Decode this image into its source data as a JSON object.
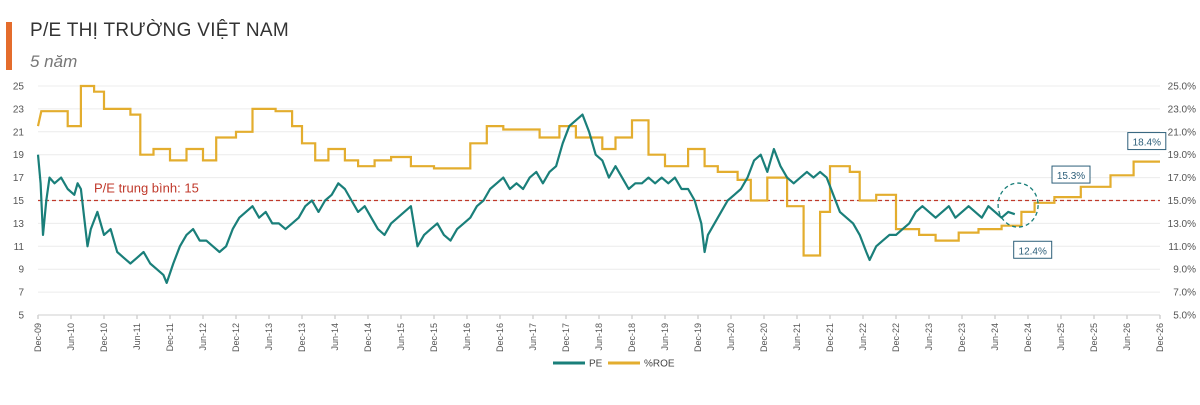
{
  "header": {
    "title": "P/E THỊ TRƯỜNG VIỆT NAM",
    "subtitle": "5 năm"
  },
  "colors": {
    "accent": "#e46c2c",
    "pe": "#1a7f7a",
    "roe": "#e3ad2e",
    "avg": "#c0392b"
  },
  "chart_data": {
    "type": "line",
    "title": "P/E THỊ TRƯỜNG VIỆT NAM",
    "subtitle": "5 năm",
    "ylim_left": [
      5,
      25
    ],
    "ylim_right": [
      5.0,
      25.0
    ],
    "left_ticks": [
      "5",
      "7",
      "9",
      "11",
      "13",
      "15",
      "17",
      "19",
      "21",
      "23",
      "25"
    ],
    "right_ticks": [
      "5.0%",
      "7.0%",
      "9.0%",
      "11.0%",
      "13.0%",
      "15.0%",
      "17.0%",
      "19.0%",
      "21.0%",
      "23.0%",
      "25.0%"
    ],
    "x_ticks": [
      "Dec-09",
      "Jun-10",
      "Dec-10",
      "Jun-11",
      "Dec-11",
      "Jun-12",
      "Dec-12",
      "Jun-13",
      "Dec-13",
      "Jun-14",
      "Dec-14",
      "Jun-15",
      "Dec-15",
      "Jun-16",
      "Dec-16",
      "Jun-17",
      "Dec-17",
      "Jun-18",
      "Dec-18",
      "Jun-19",
      "Dec-19",
      "Jun-20",
      "Dec-20",
      "Jun-21",
      "Dec-21",
      "Jun-22",
      "Dec-22",
      "Jun-23",
      "Dec-23",
      "Jun-24",
      "Dec-24",
      "Jun-25",
      "Dec-25",
      "Jun-26",
      "Dec-26"
    ],
    "reference_line": {
      "value": 15,
      "label": "P/E trung bình: 15"
    },
    "annotations": [
      "12.4%",
      "15.3%",
      "18.4%"
    ],
    "legend": {
      "position": "bottom",
      "items": [
        "PE",
        "%ROE"
      ]
    },
    "series": [
      {
        "name": "PE",
        "axis": "left",
        "points": [
          [
            0,
            19
          ],
          [
            0.08,
            16.5
          ],
          [
            0.15,
            12
          ],
          [
            0.25,
            15
          ],
          [
            0.35,
            17
          ],
          [
            0.5,
            16.5
          ],
          [
            0.7,
            17
          ],
          [
            0.9,
            16
          ],
          [
            1.1,
            15.5
          ],
          [
            1.2,
            16.5
          ],
          [
            1.3,
            16
          ],
          [
            1.4,
            13.5
          ],
          [
            1.5,
            11
          ],
          [
            1.6,
            12.5
          ],
          [
            1.8,
            14
          ],
          [
            2,
            12
          ],
          [
            2.2,
            12.5
          ],
          [
            2.4,
            10.5
          ],
          [
            2.6,
            10
          ],
          [
            2.8,
            9.5
          ],
          [
            3,
            10
          ],
          [
            3.2,
            10.5
          ],
          [
            3.4,
            9.5
          ],
          [
            3.6,
            9
          ],
          [
            3.8,
            8.5
          ],
          [
            3.9,
            7.8
          ],
          [
            4.1,
            9.5
          ],
          [
            4.3,
            11
          ],
          [
            4.5,
            12
          ],
          [
            4.7,
            12.5
          ],
          [
            4.9,
            11.5
          ],
          [
            5.1,
            11.5
          ],
          [
            5.3,
            11
          ],
          [
            5.5,
            10.5
          ],
          [
            5.7,
            11
          ],
          [
            5.9,
            12.5
          ],
          [
            6.1,
            13.5
          ],
          [
            6.3,
            14
          ],
          [
            6.5,
            14.5
          ],
          [
            6.7,
            13.5
          ],
          [
            6.9,
            14
          ],
          [
            7.1,
            13
          ],
          [
            7.3,
            13
          ],
          [
            7.5,
            12.5
          ],
          [
            7.7,
            13
          ],
          [
            7.9,
            13.5
          ],
          [
            8.1,
            14.5
          ],
          [
            8.3,
            15
          ],
          [
            8.5,
            14
          ],
          [
            8.7,
            15
          ],
          [
            8.9,
            15.5
          ],
          [
            9.1,
            16.5
          ],
          [
            9.3,
            16
          ],
          [
            9.5,
            15
          ],
          [
            9.7,
            14
          ],
          [
            9.9,
            14.5
          ],
          [
            10.1,
            13.5
          ],
          [
            10.3,
            12.5
          ],
          [
            10.5,
            12
          ],
          [
            10.7,
            13
          ],
          [
            10.9,
            13.5
          ],
          [
            11.1,
            14
          ],
          [
            11.3,
            14.5
          ],
          [
            11.5,
            11
          ],
          [
            11.7,
            12
          ],
          [
            11.9,
            12.5
          ],
          [
            12.1,
            13
          ],
          [
            12.3,
            12
          ],
          [
            12.5,
            11.5
          ],
          [
            12.7,
            12.5
          ],
          [
            12.9,
            13
          ],
          [
            13.1,
            13.5
          ],
          [
            13.3,
            14.5
          ],
          [
            13.5,
            15
          ],
          [
            13.7,
            16
          ],
          [
            13.9,
            16.5
          ],
          [
            14.1,
            17
          ],
          [
            14.3,
            16
          ],
          [
            14.5,
            16.5
          ],
          [
            14.7,
            16
          ],
          [
            14.9,
            17
          ],
          [
            15.1,
            17.5
          ],
          [
            15.3,
            16.5
          ],
          [
            15.5,
            17.5
          ],
          [
            15.7,
            18
          ],
          [
            15.9,
            20
          ],
          [
            16.1,
            21.5
          ],
          [
            16.3,
            22
          ],
          [
            16.5,
            22.5
          ],
          [
            16.7,
            21
          ],
          [
            16.9,
            19
          ],
          [
            17.1,
            18.5
          ],
          [
            17.3,
            17
          ],
          [
            17.5,
            18
          ],
          [
            17.7,
            17
          ],
          [
            17.9,
            16
          ],
          [
            18.1,
            16.5
          ],
          [
            18.3,
            16.5
          ],
          [
            18.5,
            17
          ],
          [
            18.7,
            16.5
          ],
          [
            18.9,
            17
          ],
          [
            19.1,
            16.5
          ],
          [
            19.3,
            17
          ],
          [
            19.5,
            16
          ],
          [
            19.7,
            16
          ],
          [
            19.9,
            15
          ],
          [
            20.1,
            13
          ],
          [
            20.2,
            10.5
          ],
          [
            20.3,
            12
          ],
          [
            20.5,
            13
          ],
          [
            20.7,
            14
          ],
          [
            20.9,
            15
          ],
          [
            21.1,
            15.5
          ],
          [
            21.3,
            16
          ],
          [
            21.5,
            17
          ],
          [
            21.7,
            18.5
          ],
          [
            21.9,
            19
          ],
          [
            22.1,
            17.5
          ],
          [
            22.3,
            19.5
          ],
          [
            22.5,
            18
          ],
          [
            22.7,
            17
          ],
          [
            22.9,
            16.5
          ],
          [
            23.1,
            17
          ],
          [
            23.3,
            17.5
          ],
          [
            23.5,
            17
          ],
          [
            23.7,
            17.5
          ],
          [
            23.9,
            17
          ],
          [
            24.1,
            15.5
          ],
          [
            24.3,
            14
          ],
          [
            24.5,
            13.5
          ],
          [
            24.7,
            13
          ],
          [
            24.9,
            12
          ],
          [
            25.1,
            10.5
          ],
          [
            25.2,
            9.8
          ],
          [
            25.4,
            11
          ],
          [
            25.6,
            11.5
          ],
          [
            25.8,
            12
          ],
          [
            26,
            12
          ],
          [
            26.2,
            12.5
          ],
          [
            26.4,
            13
          ],
          [
            26.6,
            14
          ],
          [
            26.8,
            14.5
          ],
          [
            27,
            14
          ],
          [
            27.2,
            13.5
          ],
          [
            27.4,
            14
          ],
          [
            27.6,
            14.5
          ],
          [
            27.8,
            13.5
          ],
          [
            28,
            14
          ],
          [
            28.2,
            14.5
          ],
          [
            28.4,
            14
          ],
          [
            28.6,
            13.5
          ],
          [
            28.8,
            14.5
          ],
          [
            29,
            14
          ],
          [
            29.2,
            13.5
          ],
          [
            29.4,
            14
          ],
          [
            29.6,
            13.8
          ]
        ]
      },
      {
        "name": "%ROE",
        "axis": "right",
        "points": [
          [
            0,
            21.5
          ],
          [
            0.1,
            22.8
          ],
          [
            0.9,
            22.8
          ],
          [
            0.9,
            21.5
          ],
          [
            1.3,
            21.5
          ],
          [
            1.3,
            25
          ],
          [
            1.7,
            25
          ],
          [
            1.7,
            24.5
          ],
          [
            2,
            24.5
          ],
          [
            2,
            23
          ],
          [
            2.8,
            23
          ],
          [
            2.8,
            22.5
          ],
          [
            3.1,
            22.5
          ],
          [
            3.1,
            19
          ],
          [
            3.5,
            19
          ],
          [
            3.5,
            19.5
          ],
          [
            4,
            19.5
          ],
          [
            4,
            18.5
          ],
          [
            4.3,
            18.5
          ],
          [
            4.3,
            18.5
          ],
          [
            4.5,
            18.5
          ],
          [
            4.5,
            19.5
          ],
          [
            5,
            19.5
          ],
          [
            5,
            18.5
          ],
          [
            5.4,
            18.5
          ],
          [
            5.4,
            20.5
          ],
          [
            6,
            20.5
          ],
          [
            6,
            21
          ],
          [
            6.5,
            21
          ],
          [
            6.5,
            23
          ],
          [
            7.2,
            23
          ],
          [
            7.2,
            22.8
          ],
          [
            7.7,
            22.8
          ],
          [
            7.7,
            21.5
          ],
          [
            8,
            21.5
          ],
          [
            8,
            20
          ],
          [
            8.4,
            20
          ],
          [
            8.4,
            18.5
          ],
          [
            8.8,
            18.5
          ],
          [
            8.8,
            19.5
          ],
          [
            9.3,
            19.5
          ],
          [
            9.3,
            18.5
          ],
          [
            9.7,
            18.5
          ],
          [
            9.7,
            18
          ],
          [
            10.2,
            18
          ],
          [
            10.2,
            18.5
          ],
          [
            10.7,
            18.5
          ],
          [
            10.7,
            18.8
          ],
          [
            11.3,
            18.8
          ],
          [
            11.3,
            18
          ],
          [
            12,
            18
          ],
          [
            12,
            17.8
          ],
          [
            13.1,
            17.8
          ],
          [
            13.1,
            20
          ],
          [
            13.6,
            20
          ],
          [
            13.6,
            21.5
          ],
          [
            14.1,
            21.5
          ],
          [
            14.1,
            21.2
          ],
          [
            15.2,
            21.2
          ],
          [
            15.2,
            20.5
          ],
          [
            15.8,
            20.5
          ],
          [
            15.8,
            21.5
          ],
          [
            16.3,
            21.5
          ],
          [
            16.3,
            20.5
          ],
          [
            17.1,
            20.5
          ],
          [
            17.1,
            19.5
          ],
          [
            17.5,
            19.5
          ],
          [
            17.5,
            20.5
          ],
          [
            18,
            20.5
          ],
          [
            18,
            22
          ],
          [
            18.5,
            22
          ],
          [
            18.5,
            19
          ],
          [
            19,
            19
          ],
          [
            19,
            18
          ],
          [
            19.7,
            18
          ],
          [
            19.7,
            19.5
          ],
          [
            20.2,
            19.5
          ],
          [
            20.2,
            18
          ],
          [
            20.6,
            18
          ],
          [
            20.6,
            17.5
          ],
          [
            21.2,
            17.5
          ],
          [
            21.2,
            16.8
          ],
          [
            21.6,
            16.8
          ],
          [
            21.6,
            15
          ],
          [
            22.1,
            15
          ],
          [
            22.1,
            17
          ],
          [
            22.7,
            17
          ],
          [
            22.7,
            14.5
          ],
          [
            23.2,
            14.5
          ],
          [
            23.2,
            10.2
          ],
          [
            23.7,
            10.2
          ],
          [
            23.7,
            14
          ],
          [
            24,
            14
          ],
          [
            24,
            18
          ],
          [
            24.6,
            18
          ],
          [
            24.6,
            17.5
          ],
          [
            24.9,
            17.5
          ],
          [
            24.9,
            15
          ],
          [
            25.4,
            15
          ],
          [
            25.4,
            15.5
          ],
          [
            26,
            15.5
          ],
          [
            26,
            12.5
          ],
          [
            26.7,
            12.5
          ],
          [
            26.7,
            12
          ],
          [
            27.2,
            12
          ],
          [
            27.2,
            11.5
          ],
          [
            27.9,
            11.5
          ],
          [
            27.9,
            12.2
          ],
          [
            28.5,
            12.2
          ],
          [
            28.5,
            12.5
          ],
          [
            29.2,
            12.5
          ],
          [
            29.2,
            12.8
          ],
          [
            29.8,
            12.8
          ],
          [
            29.8,
            14
          ],
          [
            30.2,
            14
          ],
          [
            30.2,
            14.8
          ],
          [
            30.8,
            14.8
          ],
          [
            30.8,
            15.3
          ],
          [
            31.6,
            15.3
          ],
          [
            31.6,
            16.2
          ],
          [
            32.5,
            16.2
          ],
          [
            32.5,
            17.2
          ],
          [
            33.2,
            17.2
          ],
          [
            33.2,
            18.4
          ],
          [
            34,
            18.4
          ]
        ]
      }
    ]
  }
}
